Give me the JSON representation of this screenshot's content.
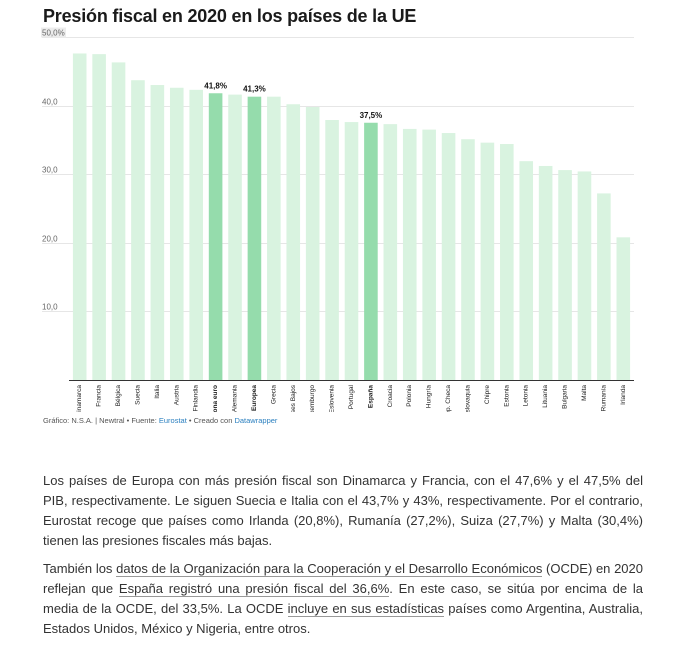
{
  "title": "Presión fiscal en 2020 en los países de la UE",
  "colors": {
    "bar": "#d9f3e0",
    "highlight": "#95dcac",
    "axis": "#333333",
    "grid": "#e6e6e6",
    "link": "#2a7fbf"
  },
  "chart_data": {
    "type": "bar",
    "title": "Presión fiscal en 2020 en los países de la UE",
    "xlabel": "",
    "ylabel": "",
    "ylim": [
      0,
      50
    ],
    "y_ticks": [
      "10,0",
      "20,0",
      "30,0",
      "40,0",
      "50,0%"
    ],
    "y_tick_values": [
      10,
      20,
      30,
      40,
      50
    ],
    "grid": true,
    "categories": [
      "Dinamarca",
      "Francia",
      "Bélgica",
      "Suecia",
      "Italia",
      "Austria",
      "Finlandia",
      "Zona euro",
      "Alemania",
      "Unión Europea",
      "Grecia",
      "Países Bajos",
      "Luxemburgo",
      "Eslovenia",
      "Portugal",
      "España",
      "Croacia",
      "Polonia",
      "Hungría",
      "Rep. Checa",
      "Eslovaquia",
      "Chipre",
      "Estonia",
      "Letonia",
      "Lituania",
      "Bulgaria",
      "Malta",
      "Rumanía",
      "Irlanda"
    ],
    "values": [
      47.6,
      47.5,
      46.3,
      43.7,
      43.0,
      42.6,
      42.3,
      41.8,
      41.6,
      41.3,
      41.3,
      40.2,
      39.8,
      37.9,
      37.6,
      37.5,
      37.3,
      36.6,
      36.5,
      36.0,
      35.1,
      34.6,
      34.4,
      31.9,
      31.2,
      30.6,
      30.4,
      27.2,
      20.8
    ],
    "highlighted": [
      "Zona euro",
      "Unión Europea",
      "España"
    ],
    "data_labels": [
      {
        "category": "Zona euro",
        "text": "41,8%"
      },
      {
        "category": "Unión Europea",
        "text": "41,3%"
      },
      {
        "category": "España",
        "text": "37,5%"
      }
    ]
  },
  "source": {
    "prefix": "Gráfico: N.S.A. | Newtral • Fuente: ",
    "source_link": "Eurostat",
    "middle": " • Creado con ",
    "tool_link": "Datawrapper"
  },
  "paragraph1": "Los países de Europa con más presión fiscal son Dinamarca y Francia, con el 47,6% y el 47,5% del PIB, respectivamente. Le siguen Suecia e Italia con el 43,7% y 43%, respectivamente. Por el contrario, Eurostat recoge que países como Irlanda (20,8%), Rumanía (27,2%), Suiza (27,7%) y Malta (30,4%) tienen las presiones fiscales más bajas.",
  "paragraph2": {
    "t1": "También los ",
    "link1": "datos de la Organización para la Cooperación y el Desarrollo Económicos",
    "t2": " (OCDE) en 2020 reflejan que ",
    "link2": "España registró una presión fiscal del 36,6%",
    "t3": ". En este caso, se sitúa por encima de la media de la OCDE, del 33,5%. La OCDE ",
    "link3": "incluye en sus estadísticas",
    "t4": " países como Argentina, Australia, Estados Unidos, México y Nigeria, entre otros."
  }
}
